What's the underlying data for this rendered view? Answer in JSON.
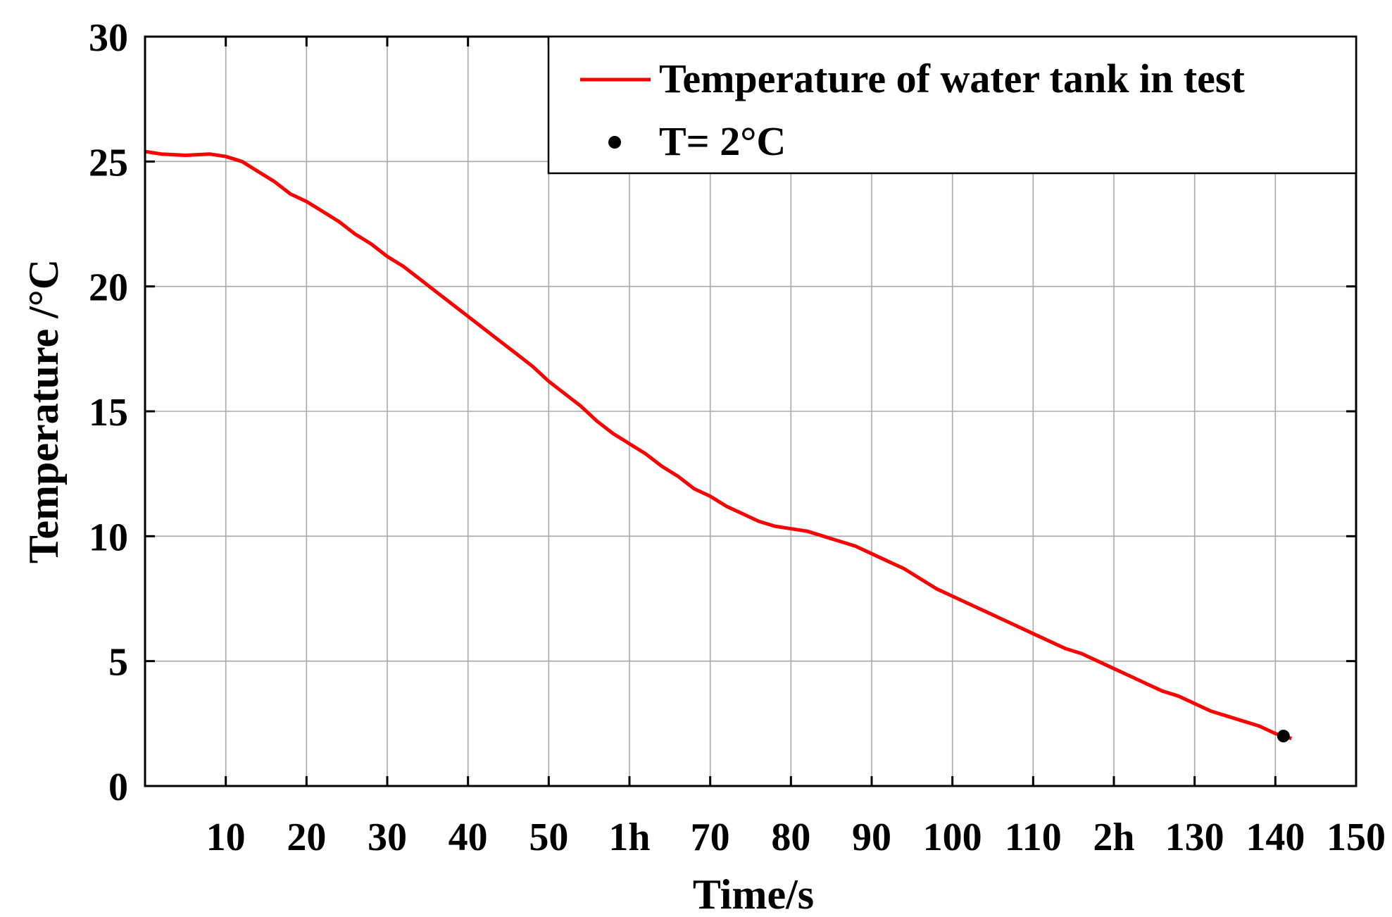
{
  "chart_data": {
    "type": "line",
    "title": "",
    "xlabel": "Time/s",
    "ylabel": "Temperature /°C",
    "xlim": [
      0,
      150
    ],
    "ylim": [
      0,
      30
    ],
    "grid": true,
    "legend_position": "top-right",
    "x_ticks": [
      10,
      20,
      30,
      40,
      50,
      60,
      70,
      80,
      90,
      100,
      110,
      120,
      130,
      140,
      150
    ],
    "x_tick_labels": [
      "10",
      "20",
      "30",
      "40",
      "50",
      "1h",
      "70",
      "80",
      "90",
      "100",
      "110",
      "2h",
      "130",
      "140",
      "150"
    ],
    "y_ticks": [
      0,
      5,
      10,
      15,
      20,
      25,
      30
    ],
    "y_tick_labels": [
      "0",
      "5",
      "10",
      "15",
      "20",
      "25",
      "30"
    ],
    "series": [
      {
        "name": "Temperature of water tank in test",
        "color": "#ff0000",
        "x": [
          0,
          2,
          5,
          8,
          10,
          12,
          14,
          16,
          18,
          20,
          22,
          24,
          26,
          28,
          30,
          32,
          34,
          36,
          38,
          40,
          42,
          44,
          46,
          48,
          50,
          52,
          54,
          56,
          58,
          60,
          62,
          64,
          66,
          68,
          70,
          72,
          74,
          76,
          78,
          80,
          82,
          84,
          86,
          88,
          90,
          92,
          94,
          96,
          98,
          100,
          102,
          104,
          106,
          108,
          110,
          112,
          114,
          116,
          118,
          120,
          122,
          124,
          126,
          128,
          130,
          132,
          134,
          136,
          138,
          140,
          142
        ],
        "y": [
          25.4,
          25.3,
          25.25,
          25.3,
          25.2,
          25.0,
          24.6,
          24.2,
          23.7,
          23.4,
          23.0,
          22.6,
          22.1,
          21.7,
          21.2,
          20.8,
          20.3,
          19.8,
          19.3,
          18.8,
          18.3,
          17.8,
          17.3,
          16.8,
          16.2,
          15.7,
          15.2,
          14.6,
          14.1,
          13.7,
          13.3,
          12.8,
          12.4,
          11.9,
          11.6,
          11.2,
          10.9,
          10.6,
          10.4,
          10.3,
          10.2,
          10.0,
          9.8,
          9.6,
          9.3,
          9.0,
          8.7,
          8.3,
          7.9,
          7.6,
          7.3,
          7.0,
          6.7,
          6.4,
          6.1,
          5.8,
          5.5,
          5.3,
          5.0,
          4.7,
          4.4,
          4.1,
          3.8,
          3.6,
          3.3,
          3.0,
          2.8,
          2.6,
          2.4,
          2.1,
          1.9
        ]
      }
    ],
    "markers": [
      {
        "name": "T= 2°C",
        "color": "#000000",
        "x": 141,
        "y": 2.0
      }
    ]
  }
}
